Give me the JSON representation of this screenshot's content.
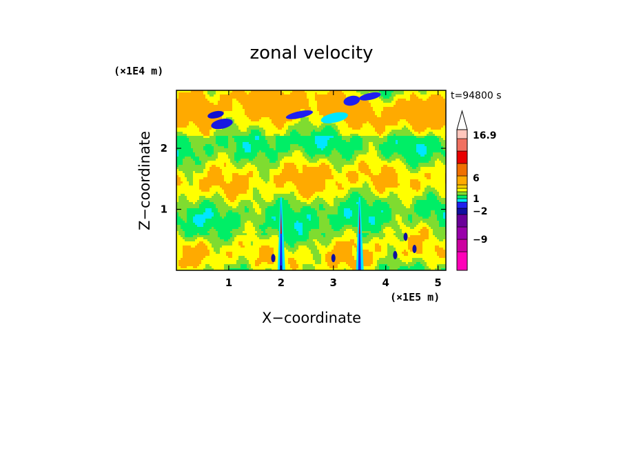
{
  "chart_data": {
    "type": "heatmap",
    "title": "zonal velocity",
    "xlabel": "X−coordinate",
    "ylabel": "Z−coordinate",
    "x_unit": "(×1E5 m)",
    "y_unit": "(×1E4 m)",
    "time_label": "t=94800 s",
    "xlim": [
      0,
      5.15
    ],
    "ylim": [
      0,
      2.95
    ],
    "x_ticks": [
      1,
      2,
      3,
      4,
      5
    ],
    "y_ticks": [
      1,
      2
    ],
    "x_tick_labels": [
      "1",
      "2",
      "3",
      "4",
      "5"
    ],
    "y_tick_labels": [
      "1",
      "2"
    ],
    "colorbar": {
      "labels": [
        "16.9",
        "6",
        "1",
        "−2",
        "−9"
      ],
      "label_positions": [
        16.9,
        6,
        1,
        -2,
        -9
      ],
      "levels": [
        -16,
        -12,
        -9,
        -6,
        -4,
        -2,
        -1,
        0,
        0.5,
        1,
        2,
        4,
        6,
        9,
        12,
        16.9
      ],
      "colors": [
        "#ff00b8",
        "#cc00a0",
        "#9900aa",
        "#6a0099",
        "#1010a0",
        "#2020ee",
        "#00e6ff",
        "#00ee66",
        "#7fdc30",
        "#ffff00",
        "#ffd000",
        "#ffaa00",
        "#f07000",
        "#e80000",
        "#f07060",
        "#ffc6bc"
      ]
    },
    "features": {
      "blue_patches": [
        [
          0.75,
          2.55,
          "#1010d0"
        ],
        [
          0.87,
          2.4,
          "#1818e0"
        ],
        [
          2.35,
          2.55,
          "#1e1ef0"
        ],
        [
          3.35,
          2.78,
          "#1e1ef0"
        ],
        [
          3.7,
          2.85,
          "#1e1ef0"
        ],
        [
          3.02,
          2.5,
          "#00e6ff"
        ]
      ],
      "plumes": [
        2.0,
        3.5
      ],
      "dots": [
        [
          4.38,
          0.55
        ],
        [
          4.18,
          0.25
        ],
        [
          4.55,
          0.35
        ],
        [
          3.0,
          0.2
        ],
        [
          1.85,
          0.2
        ]
      ]
    }
  }
}
